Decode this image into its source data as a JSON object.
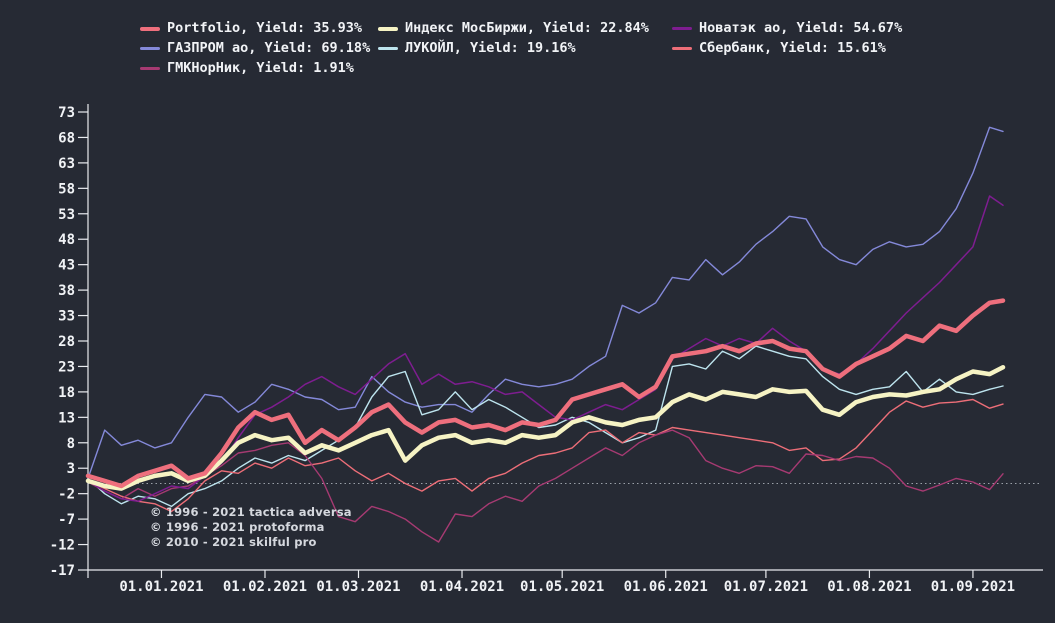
{
  "app": {
    "background_color": "#262a34",
    "text_color": "#f1f3f6",
    "axis_color": "#e9ebef",
    "zero_line_color": "#9aa0a8"
  },
  "legend": {
    "items": [
      {
        "id": "portfolio",
        "label": "Portfolio, Yield: 35.93%",
        "name": "Portfolio",
        "yield": "35.93%",
        "color": "#ee6f7d",
        "thick": true
      },
      {
        "id": "moex",
        "label": "Индекс МосБиржи, Yield: 22.84%",
        "name": "Индекс МосБиржи",
        "yield": "22.84%",
        "color": "#f6f3c4",
        "thick": true
      },
      {
        "id": "novatek",
        "label": "Новатэк ао, Yield: 54.67%",
        "name": "Новатэк ао",
        "yield": "54.67%",
        "color": "#7e1d90",
        "thick": false
      },
      {
        "id": "gazprom",
        "label": "ГАЗПРОМ ао, Yield: 69.18%",
        "name": "ГАЗПРОМ ао",
        "yield": "69.18%",
        "color": "#8489d9",
        "thick": false
      },
      {
        "id": "lukoil",
        "label": "ЛУКОЙЛ, Yield: 19.16%",
        "name": "ЛУКОЙЛ",
        "yield": "19.16%",
        "color": "#bde4ee",
        "thick": false
      },
      {
        "id": "sberbank",
        "label": "Сбербанк, Yield: 15.61%",
        "name": "Сбербанк",
        "yield": "15.61%",
        "color": "#ed6e78",
        "thick": false
      },
      {
        "id": "gmk",
        "label": "ГМКНорНик, Yield: 1.91%",
        "name": "ГМКНорНик",
        "yield": "1.91%",
        "color": "#a63a72",
        "thick": false
      }
    ]
  },
  "watermarks": [
    "© 1996 - 2021 tactica adversa",
    "© 1996 - 2021 protoforma",
    "© 2010 - 2021 skilful pro"
  ],
  "chart_data": {
    "type": "line",
    "title": "",
    "xlabel": "",
    "ylabel": "",
    "grid": false,
    "legend_position": "top",
    "ylim": [
      -17,
      73
    ],
    "y_ticks": [
      73,
      68,
      63,
      58,
      53,
      48,
      43,
      38,
      33,
      28,
      23,
      18,
      13,
      8,
      3,
      -2,
      -7,
      -12,
      -17
    ],
    "zero_line": 0,
    "x_ticks": [
      {
        "label": "01.01.2021",
        "day": 22
      },
      {
        "label": "01.02.2021",
        "day": 53
      },
      {
        "label": "01.03.2021",
        "day": 81
      },
      {
        "label": "01.04.2021",
        "day": 112
      },
      {
        "label": "01.05.2021",
        "day": 142
      },
      {
        "label": "01.06.2021",
        "day": 173
      },
      {
        "label": "01.07.2021",
        "day": 203
      },
      {
        "label": "01.08.2021",
        "day": 234
      },
      {
        "label": "01.09.2021",
        "day": 265
      }
    ],
    "x_domain_days": [
      0,
      274
    ],
    "days": [
      0,
      5,
      10,
      15,
      20,
      25,
      30,
      35,
      40,
      45,
      50,
      55,
      60,
      65,
      70,
      75,
      80,
      85,
      90,
      95,
      100,
      105,
      110,
      115,
      120,
      125,
      130,
      135,
      140,
      145,
      150,
      155,
      160,
      165,
      170,
      175,
      180,
      185,
      190,
      195,
      200,
      205,
      210,
      215,
      220,
      225,
      230,
      235,
      240,
      245,
      250,
      255,
      260,
      265,
      270,
      274
    ],
    "series": [
      {
        "id": "gazprom",
        "name": "ГАЗПРОМ ао",
        "yield_pct": 69.18,
        "color": "#8489d9",
        "width": 1.4,
        "z": 1,
        "values": [
          1,
          10.5,
          7.5,
          8.5,
          7,
          8,
          13,
          17.5,
          17,
          14,
          16,
          19.5,
          18.5,
          17,
          16.5,
          14.5,
          15,
          21,
          18,
          16,
          15,
          15.5,
          15.5,
          14,
          17.5,
          20.5,
          19.5,
          19,
          19.5,
          20.5,
          23,
          25,
          35,
          33.5,
          35.5,
          40.5,
          40,
          44,
          41,
          43.5,
          47,
          49.5,
          52.5,
          52,
          46.5,
          44,
          43,
          46,
          47.5,
          46.5,
          47,
          49.5,
          54,
          61,
          70,
          69.18
        ]
      },
      {
        "id": "lukoil",
        "name": "ЛУКОЙЛ",
        "yield_pct": 19.16,
        "color": "#bde4ee",
        "width": 1.4,
        "z": 2,
        "values": [
          1,
          -2,
          -4,
          -2.5,
          -3,
          -4.5,
          -2,
          -1,
          0.5,
          3,
          5,
          4,
          5.5,
          4.5,
          6.5,
          8.5,
          11,
          17,
          21,
          22,
          13.5,
          14.5,
          18,
          14.5,
          16.5,
          15,
          13,
          11,
          11.5,
          13,
          12,
          10,
          8,
          9,
          10.5,
          23,
          23.5,
          22.5,
          26,
          24.5,
          27,
          26,
          25,
          24.5,
          21,
          18.5,
          17.5,
          18.5,
          19,
          22,
          18,
          20.5,
          18,
          17.5,
          18.5,
          19.16
        ]
      },
      {
        "id": "sberbank",
        "name": "Сбербанк",
        "yield_pct": 15.61,
        "color": "#ed6e78",
        "width": 1.4,
        "z": 3,
        "values": [
          0.5,
          -1,
          -2.5,
          -3.5,
          -4,
          -5.5,
          -3,
          0.5,
          2.5,
          2,
          4,
          3,
          5,
          3.5,
          4,
          5,
          2.5,
          0.5,
          2,
          0,
          -1.5,
          0.5,
          1,
          -1.5,
          1,
          2,
          4,
          5.5,
          6,
          7,
          10,
          10.5,
          8,
          10,
          9.5,
          11,
          10.5,
          10,
          9.5,
          9,
          8.5,
          8,
          6.5,
          7,
          4.5,
          4.8,
          7,
          10.5,
          14,
          16.2,
          15,
          15.8,
          16,
          16.5,
          14.8,
          15.61
        ]
      },
      {
        "id": "gmk",
        "name": "ГМКНорНик",
        "yield_pct": 1.91,
        "color": "#a63a72",
        "width": 1.4,
        "z": 4,
        "values": [
          0.3,
          -1.5,
          -3,
          -1,
          -2.5,
          -1,
          -0.5,
          1.5,
          3.5,
          6,
          6.5,
          7.5,
          8,
          5.5,
          1,
          -6.5,
          -7.5,
          -4.5,
          -5.5,
          -7,
          -9.5,
          -11.5,
          -6,
          -6.5,
          -4,
          -2.5,
          -3.5,
          -0.5,
          1,
          3,
          5,
          7,
          5.5,
          8,
          9.5,
          10.5,
          9,
          4.5,
          3,
          2,
          3.5,
          3.3,
          2,
          5.8,
          5.5,
          4.5,
          5.3,
          5,
          3,
          -0.5,
          -1.5,
          -0.3,
          1,
          0.3,
          -1.2,
          1.91
        ]
      },
      {
        "id": "novatek",
        "name": "Новатэк ао",
        "yield_pct": 54.67,
        "color": "#7e1d90",
        "width": 1.5,
        "z": 5,
        "values": [
          0.5,
          -1.5,
          -3,
          -3.5,
          -2,
          -0.5,
          -1,
          1.5,
          4,
          9,
          13.5,
          15,
          17,
          19.5,
          21,
          19,
          17.5,
          20.5,
          23.5,
          25.5,
          19.5,
          21.5,
          19.5,
          20,
          19,
          17.5,
          18,
          15.5,
          13,
          12.5,
          14,
          15.5,
          14.5,
          16.5,
          18.5,
          24.5,
          26.5,
          28.5,
          27,
          28.5,
          27.5,
          30.5,
          28,
          26,
          22.5,
          21.5,
          23.5,
          26.5,
          30,
          33.5,
          36.5,
          39.5,
          43,
          46.5,
          56.5,
          54.67
        ]
      },
      {
        "id": "moex",
        "name": "Индекс МосБиржи",
        "yield_pct": 22.84,
        "color": "#f6f3c4",
        "width": 4.5,
        "z": 6,
        "values": [
          0.5,
          -0.5,
          -1,
          0.5,
          1.5,
          2,
          0.5,
          1.5,
          4.5,
          8,
          9.5,
          8.5,
          9,
          6,
          7.5,
          6.5,
          8,
          9.5,
          10.5,
          4.5,
          7.5,
          9,
          9.5,
          8,
          8.5,
          8,
          9.5,
          9,
          9.5,
          12,
          13,
          12,
          11.5,
          12.5,
          13,
          16,
          17.5,
          16.5,
          18,
          17.5,
          17,
          18.5,
          18,
          18.2,
          14.5,
          13.5,
          16,
          17,
          17.5,
          17.3,
          18,
          18.5,
          20.5,
          22,
          21.5,
          22.84
        ]
      },
      {
        "id": "portfolio",
        "name": "Portfolio",
        "yield_pct": 35.93,
        "color": "#ee6f7d",
        "width": 4.5,
        "z": 7,
        "values": [
          1.5,
          0.5,
          -0.5,
          1.5,
          2.5,
          3.5,
          1,
          2,
          6,
          11,
          14,
          12.5,
          13.5,
          8,
          10.5,
          8.5,
          11,
          14,
          15.5,
          12,
          10,
          12,
          12.5,
          11,
          11.5,
          10.5,
          12,
          11.5,
          12.5,
          16.5,
          17.5,
          18.5,
          19.5,
          17,
          19,
          25,
          25.5,
          26,
          27,
          26,
          27.5,
          28,
          26.5,
          26,
          22.5,
          21,
          23.5,
          25,
          26.5,
          29,
          28,
          31,
          30,
          33,
          35.5,
          35.93
        ]
      }
    ]
  }
}
